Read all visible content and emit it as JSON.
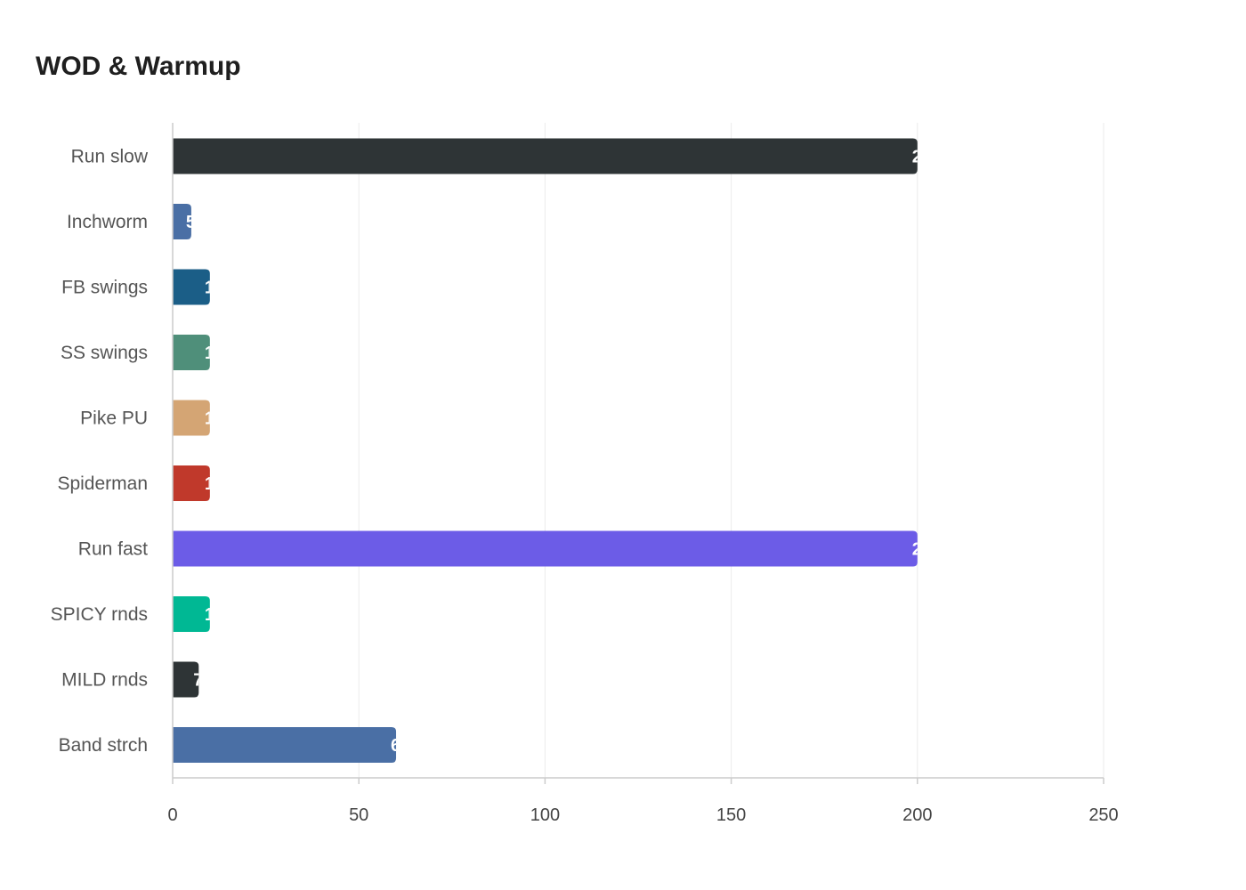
{
  "chart_data": {
    "type": "bar",
    "orientation": "horizontal",
    "title": "WOD & Warmup",
    "categories": [
      "Run slow",
      "Inchworm",
      "FB swings",
      "SS swings",
      "Pike PU",
      "Spiderman",
      "Run fast",
      "SPICY rnds",
      "MILD rnds",
      "Band strch"
    ],
    "values": [
      200,
      5,
      10,
      10,
      10,
      10,
      200,
      10,
      7,
      60
    ],
    "colors": [
      "#2e3436",
      "#4a6fa5",
      "#1b5e87",
      "#4f8f7a",
      "#d4a574",
      "#c0392b",
      "#6c5ce7",
      "#00b894",
      "#2e3436",
      "#4a6fa5"
    ],
    "xlim": [
      0,
      250
    ],
    "xticks": [
      "0",
      "50",
      "100",
      "150",
      "200",
      "250"
    ],
    "xlabel": "",
    "ylabel": "",
    "grid": true,
    "legend": "none"
  }
}
